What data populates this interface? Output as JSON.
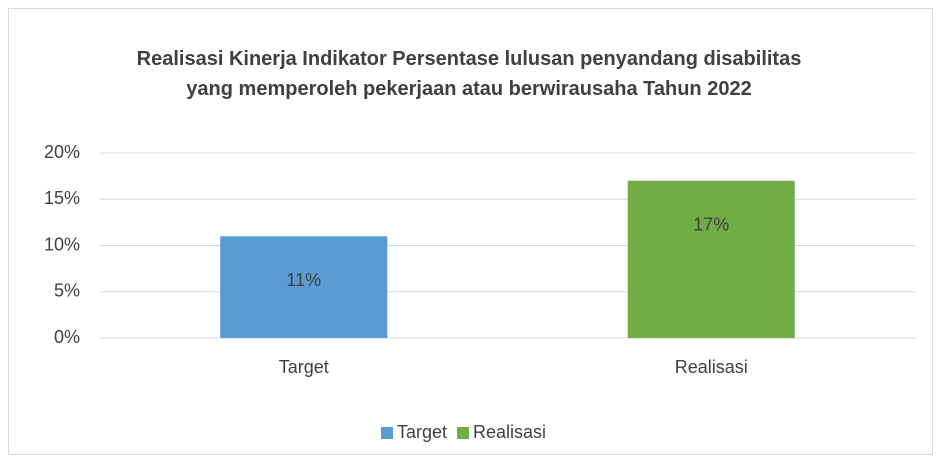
{
  "chart_data": {
    "type": "bar",
    "title": "Realisasi Kinerja Indikator Persentase lulusan penyandang disabilitas yang memperoleh pekerjaan atau berwirausaha Tahun 2022",
    "categories": [
      "Target",
      "Realisasi"
    ],
    "values": [
      11,
      17
    ],
    "value_labels": [
      "11%",
      "17%"
    ],
    "colors": [
      "#5b9bd5",
      "#70ad47"
    ],
    "ylim": [
      0,
      20
    ],
    "yticks": [
      {
        "value": 0,
        "label": "0%"
      },
      {
        "value": 5,
        "label": "5%"
      },
      {
        "value": 10,
        "label": "10%"
      },
      {
        "value": 15,
        "label": "15%"
      },
      {
        "value": 20,
        "label": "20%"
      }
    ],
    "grid": true,
    "legend": "bottom"
  }
}
